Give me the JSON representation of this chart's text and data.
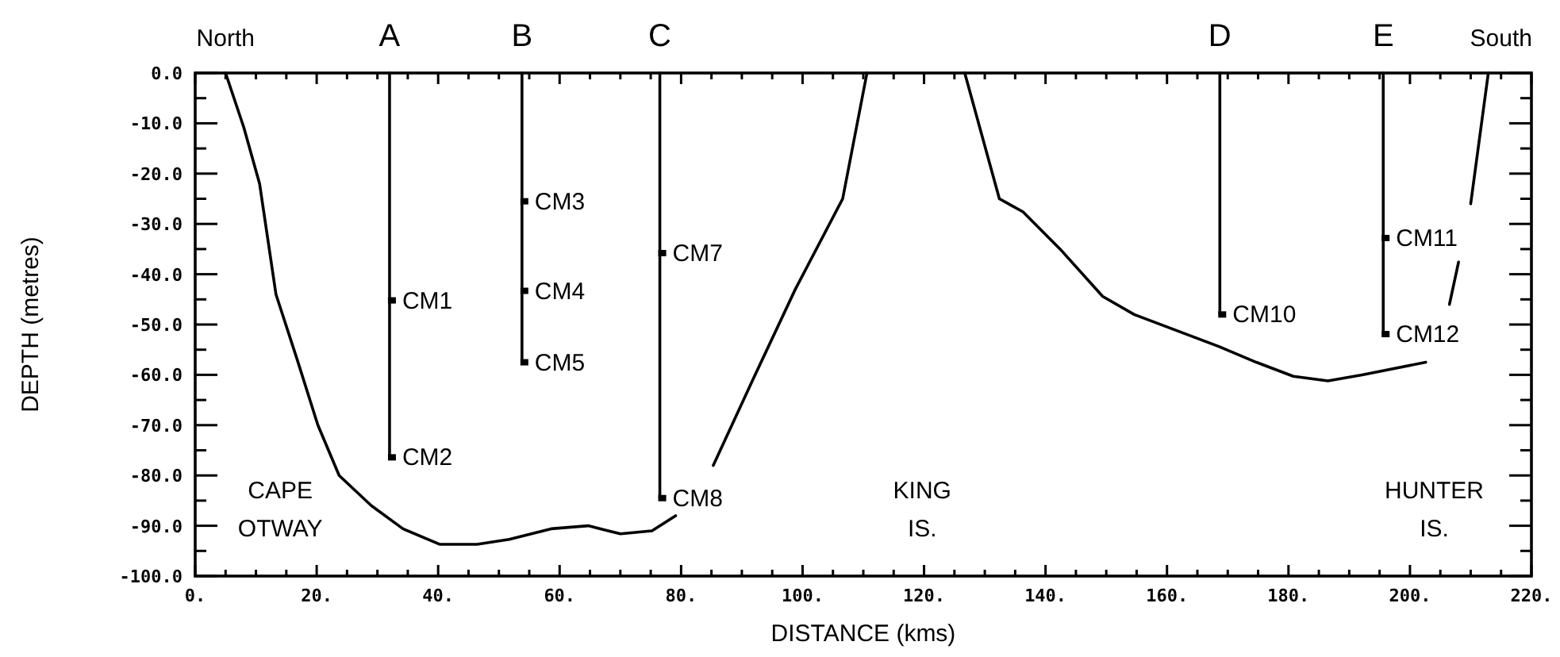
{
  "chart_data": {
    "type": "line",
    "xlabel": "DISTANCE (kms)",
    "ylabel": "DEPTH (metres)",
    "xlim": [
      0,
      220
    ],
    "ylim": [
      -100,
      0
    ],
    "xticks": [
      {
        "value": 0,
        "label": "0."
      },
      {
        "value": 5,
        "label": null
      },
      {
        "value": 10,
        "label": null
      },
      {
        "value": 15,
        "label": null
      },
      {
        "value": 20,
        "label": "20."
      },
      {
        "value": 25,
        "label": null
      },
      {
        "value": 30,
        "label": null
      },
      {
        "value": 35,
        "label": null
      },
      {
        "value": 40,
        "label": "40."
      },
      {
        "value": 45,
        "label": null
      },
      {
        "value": 50,
        "label": null
      },
      {
        "value": 55,
        "label": null
      },
      {
        "value": 60,
        "label": "60."
      },
      {
        "value": 65,
        "label": null
      },
      {
        "value": 70,
        "label": null
      },
      {
        "value": 75,
        "label": null
      },
      {
        "value": 80,
        "label": "80."
      },
      {
        "value": 85,
        "label": null
      },
      {
        "value": 90,
        "label": null
      },
      {
        "value": 95,
        "label": null
      },
      {
        "value": 100,
        "label": "100."
      },
      {
        "value": 105,
        "label": null
      },
      {
        "value": 110,
        "label": null
      },
      {
        "value": 115,
        "label": null
      },
      {
        "value": 120,
        "label": "120."
      },
      {
        "value": 125,
        "label": null
      },
      {
        "value": 130,
        "label": null
      },
      {
        "value": 135,
        "label": null
      },
      {
        "value": 140,
        "label": "140."
      },
      {
        "value": 145,
        "label": null
      },
      {
        "value": 150,
        "label": null
      },
      {
        "value": 155,
        "label": null
      },
      {
        "value": 160,
        "label": "160."
      },
      {
        "value": 165,
        "label": null
      },
      {
        "value": 170,
        "label": null
      },
      {
        "value": 175,
        "label": null
      },
      {
        "value": 180,
        "label": "180."
      },
      {
        "value": 185,
        "label": null
      },
      {
        "value": 190,
        "label": null
      },
      {
        "value": 195,
        "label": null
      },
      {
        "value": 200,
        "label": "200."
      },
      {
        "value": 205,
        "label": null
      },
      {
        "value": 210,
        "label": null
      },
      {
        "value": 215,
        "label": null
      },
      {
        "value": 220,
        "label": "220."
      }
    ],
    "yticks": [
      {
        "value": 0,
        "label": "0.0"
      },
      {
        "value": -5,
        "label": null
      },
      {
        "value": -10,
        "label": "-10.0"
      },
      {
        "value": -15,
        "label": null
      },
      {
        "value": -20,
        "label": "-20.0"
      },
      {
        "value": -25,
        "label": null
      },
      {
        "value": -30,
        "label": "-30.0"
      },
      {
        "value": -35,
        "label": null
      },
      {
        "value": -40,
        "label": "-40.0"
      },
      {
        "value": -45,
        "label": null
      },
      {
        "value": -50,
        "label": "-50.0"
      },
      {
        "value": -55,
        "label": null
      },
      {
        "value": -60,
        "label": "-60.0"
      },
      {
        "value": -65,
        "label": null
      },
      {
        "value": -70,
        "label": "-70.0"
      },
      {
        "value": -75,
        "label": null
      },
      {
        "value": -80,
        "label": "-80.0"
      },
      {
        "value": -85,
        "label": null
      },
      {
        "value": -90,
        "label": "-90.0"
      },
      {
        "value": -95,
        "label": null
      },
      {
        "value": -100,
        "label": "-100.0"
      }
    ],
    "series": [
      {
        "color": "#000000",
        "x": [
          5,
          8,
          10.6,
          13.3,
          16.8,
          20.2,
          23.7,
          29,
          34.2,
          40.3,
          46.4,
          51.7,
          58.6,
          64.7,
          70,
          75.2,
          79.1,
          82,
          85.3,
          91.8,
          98.8,
          106.6,
          110.6,
          118,
          126.7,
          132.4,
          136.3,
          142.4,
          149.4,
          154.6,
          161.6,
          168.6,
          174.7,
          180.8,
          186.5,
          192.1,
          202.6,
          204.5,
          206.5,
          208,
          209,
          210,
          212.9
        ],
        "values": [
          0,
          -10.8,
          -22,
          -44,
          -57,
          -70,
          -80,
          -86,
          -90.6,
          -93.7,
          -93.7,
          -92.7,
          -90.6,
          -90,
          -91.6,
          -91,
          -88,
          null,
          -78,
          -61,
          -43,
          -25,
          0,
          null,
          0,
          -25,
          -27.6,
          -35,
          -44.4,
          -48,
          -51.2,
          -54.4,
          -57.5,
          -60.3,
          -61.2,
          -60,
          -57.5,
          null,
          -46,
          -37.6,
          null,
          -26,
          0
        ]
      },
      {
        "color": "#000000",
        "x": [
          32,
          32
        ],
        "values": [
          0,
          -76.4
        ]
      },
      {
        "color": "#000000",
        "x": [
          53.8,
          53.8
        ],
        "values": [
          0,
          -57.5
        ]
      },
      {
        "color": "#000000",
        "x": [
          76.5,
          76.5
        ],
        "values": [
          0,
          -84.5
        ]
      },
      {
        "color": "#000000",
        "x": [
          168.7,
          168.7
        ],
        "values": [
          0,
          -48
        ]
      },
      {
        "color": "#000000",
        "x": [
          195.6,
          195.6
        ],
        "values": [
          0,
          -51.9
        ]
      },
      {
        "type": "scatter",
        "color": "#000000",
        "marker": "square",
        "x": [
          32,
          32,
          53.8,
          53.8,
          53.8,
          76.5,
          76.5,
          168.7,
          195.6,
          195.6
        ],
        "values": [
          -45.2,
          -76.4,
          -25.5,
          -43.3,
          -57.5,
          -35.8,
          -84.5,
          -48,
          -32.8,
          -51.9
        ]
      }
    ],
    "annotations": [
      "North",
      "South",
      {
        "text": "A",
        "x": 32,
        "y": 0
      },
      {
        "text": "B",
        "x": 53.8,
        "y": 0
      },
      {
        "text": "C",
        "x": 76.5,
        "y": 0
      },
      {
        "text": "D",
        "x": 168.7,
        "y": 0
      },
      {
        "text": "E",
        "x": 195.6,
        "y": 0
      },
      {
        "text": "CM1",
        "x": 32,
        "y": -45.2
      },
      {
        "text": "CM2",
        "x": 32,
        "y": -76.4
      },
      {
        "text": "CM3",
        "x": 53.8,
        "y": -25.5
      },
      {
        "text": "CM4",
        "x": 53.8,
        "y": -43.3
      },
      {
        "text": "CM5",
        "x": 53.8,
        "y": -57.5
      },
      {
        "text": "CM7",
        "x": 76.5,
        "y": -35.8
      },
      {
        "text": "CM8",
        "x": 76.5,
        "y": -84.5
      },
      {
        "text": "CM10",
        "x": 168.7,
        "y": -48
      },
      {
        "text": "CM11",
        "x": 195.6,
        "y": -32.8
      },
      {
        "text": "CM12",
        "x": 195.6,
        "y": -51.9
      },
      "CAPE\nOTWAY",
      "KING\nIS.",
      "HUNTER\nIS."
    ]
  }
}
